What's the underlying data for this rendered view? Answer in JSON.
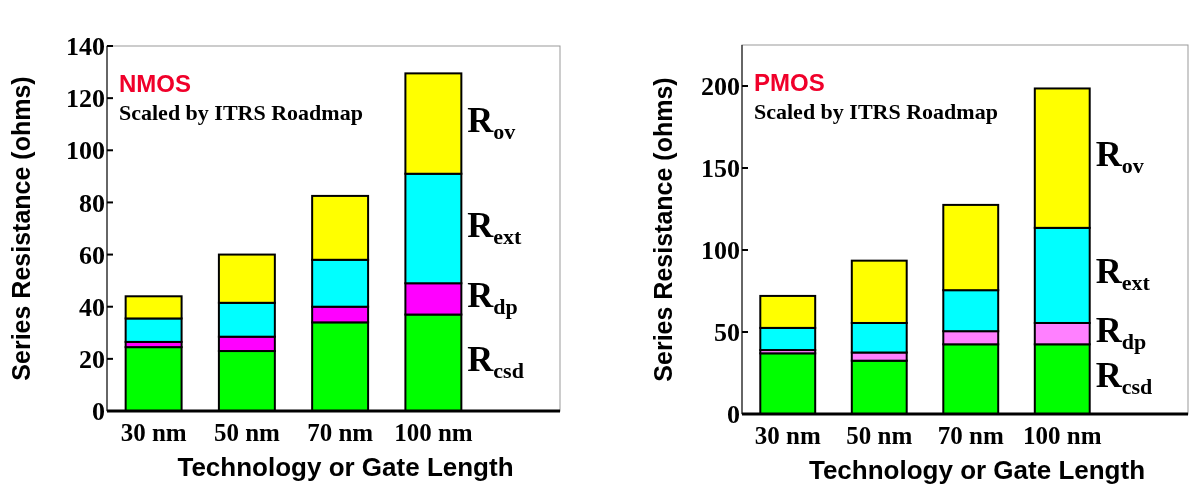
{
  "chart_data": [
    {
      "type": "bar",
      "stacked": true,
      "title": "NMOS",
      "annotations": [
        "Scaled by ITRS Roadmap"
      ],
      "xlabel": "Technology or Gate Length",
      "ylabel": "Series Resistance (ohms)",
      "categories": [
        "30 nm",
        "50 nm",
        "70 nm",
        "100 nm"
      ],
      "ylim": [
        0,
        140
      ],
      "yticks": [
        0,
        20,
        40,
        60,
        80,
        100,
        120,
        140
      ],
      "series": [
        {
          "name": "R$_{csd}$",
          "color": "#00ff00",
          "values": [
            24.5,
            23,
            34,
            37
          ]
        },
        {
          "name": "R$_{dp}$",
          "color": "#ff00ff",
          "values": [
            2,
            5.5,
            6,
            12
          ]
        },
        {
          "name": "R$_{ext}$",
          "color": "#00ffff",
          "values": [
            9,
            13,
            18,
            42
          ]
        },
        {
          "name": "R$_{ov}$",
          "color": "#ffff00",
          "values": [
            8.5,
            18.5,
            24.5,
            38.5
          ]
        }
      ]
    },
    {
      "type": "bar",
      "stacked": true,
      "title": "PMOS",
      "annotations": [
        "Scaled by ITRS Roadmap"
      ],
      "xlabel": "Technology or Gate Length",
      "ylabel": "Series Resistance (ohms)",
      "categories": [
        "30 nm",
        "50 nm",
        "70 nm",
        "100 nm"
      ],
      "ylim": [
        0,
        225
      ],
      "yticks": [
        0,
        50,
        100,
        150,
        200
      ],
      "series": [
        {
          "name": "R$_{csd}$",
          "color": "#00ff00",
          "values": [
            37,
            32.5,
            42.5,
            42.5
          ]
        },
        {
          "name": "R$_{dp}$",
          "color": "#ff80ff",
          "values": [
            2,
            5,
            8,
            13
          ]
        },
        {
          "name": "R$_{ext}$",
          "color": "#00ffff",
          "values": [
            13.5,
            18,
            25,
            58
          ]
        },
        {
          "name": "R$_{ov}$",
          "color": "#ffff00",
          "values": [
            19.5,
            38,
            52,
            85
          ]
        }
      ]
    }
  ]
}
